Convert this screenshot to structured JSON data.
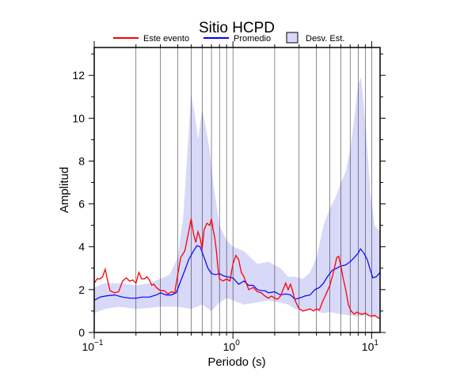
{
  "chart_data": {
    "type": "line",
    "title": "Sitio HCPD",
    "xlabel": "Periodo (s)",
    "ylabel": "Amplitud",
    "xscale": "log",
    "xlim": [
      0.1,
      11.5
    ],
    "ylim": [
      0,
      13.3
    ],
    "grid": "vertical log grid lines",
    "legend_position": "top",
    "x_tick_labels": [
      {
        "value": 0.1,
        "base": "10",
        "exp": "−1"
      },
      {
        "value": 1,
        "base": "10",
        "exp": "0"
      },
      {
        "value": 10,
        "base": "10",
        "exp": "1"
      }
    ],
    "y_ticks": [
      0,
      2,
      4,
      6,
      8,
      10,
      12
    ],
    "legend": [
      {
        "label": "Este evento",
        "color": "#ff0000",
        "kind": "line"
      },
      {
        "label": "Promedio",
        "color": "#0000ff",
        "kind": "line"
      },
      {
        "label": "Desv. Est.",
        "color": "#d8d8f8",
        "kind": "box"
      }
    ],
    "series": [
      {
        "name": "Este evento",
        "color": "#ff0000",
        "points": [
          [
            0.1,
            2.3
          ],
          [
            0.105,
            2.5
          ],
          [
            0.11,
            2.5
          ],
          [
            0.115,
            2.6
          ],
          [
            0.12,
            2.95
          ],
          [
            0.125,
            2.4
          ],
          [
            0.13,
            1.95
          ],
          [
            0.14,
            1.85
          ],
          [
            0.15,
            1.9
          ],
          [
            0.16,
            2.4
          ],
          [
            0.17,
            2.55
          ],
          [
            0.18,
            2.4
          ],
          [
            0.19,
            2.45
          ],
          [
            0.2,
            2.3
          ],
          [
            0.21,
            2.8
          ],
          [
            0.22,
            2.5
          ],
          [
            0.23,
            2.5
          ],
          [
            0.24,
            2.6
          ],
          [
            0.25,
            2.45
          ],
          [
            0.26,
            2.2
          ],
          [
            0.27,
            2.25
          ],
          [
            0.28,
            2.1
          ],
          [
            0.3,
            1.95
          ],
          [
            0.32,
            1.95
          ],
          [
            0.34,
            1.8
          ],
          [
            0.36,
            1.9
          ],
          [
            0.38,
            1.85
          ],
          [
            0.4,
            2.7
          ],
          [
            0.42,
            3.5
          ],
          [
            0.45,
            3.8
          ],
          [
            0.48,
            4.7
          ],
          [
            0.5,
            5.3
          ],
          [
            0.52,
            4.6
          ],
          [
            0.54,
            4.2
          ],
          [
            0.56,
            4.7
          ],
          [
            0.58,
            4.4
          ],
          [
            0.6,
            3.9
          ],
          [
            0.62,
            4.8
          ],
          [
            0.65,
            5.1
          ],
          [
            0.68,
            5.0
          ],
          [
            0.7,
            5.3
          ],
          [
            0.72,
            4.8
          ],
          [
            0.74,
            4.4
          ],
          [
            0.76,
            3.8
          ],
          [
            0.78,
            3.0
          ],
          [
            0.8,
            2.5
          ],
          [
            0.85,
            2.4
          ],
          [
            0.9,
            2.5
          ],
          [
            0.95,
            2.4
          ],
          [
            1.0,
            3.2
          ],
          [
            1.05,
            3.6
          ],
          [
            1.1,
            3.4
          ],
          [
            1.15,
            2.8
          ],
          [
            1.2,
            2.6
          ],
          [
            1.3,
            2.0
          ],
          [
            1.4,
            2.1
          ],
          [
            1.5,
            1.9
          ],
          [
            1.6,
            1.85
          ],
          [
            1.7,
            1.7
          ],
          [
            1.8,
            1.6
          ],
          [
            1.9,
            1.7
          ],
          [
            2.0,
            1.6
          ],
          [
            2.1,
            1.55
          ],
          [
            2.2,
            1.7
          ],
          [
            2.4,
            2.3
          ],
          [
            2.5,
            2.0
          ],
          [
            2.6,
            2.25
          ],
          [
            2.7,
            1.9
          ],
          [
            2.8,
            1.5
          ],
          [
            3.0,
            1.1
          ],
          [
            3.2,
            1.0
          ],
          [
            3.4,
            1.05
          ],
          [
            3.6,
            1.1
          ],
          [
            3.8,
            1.0
          ],
          [
            4.0,
            1.1
          ],
          [
            4.2,
            1.05
          ],
          [
            4.4,
            1.4
          ],
          [
            4.7,
            1.8
          ],
          [
            5.0,
            2.2
          ],
          [
            5.3,
            2.8
          ],
          [
            5.6,
            3.5
          ],
          [
            5.8,
            3.55
          ],
          [
            6.0,
            3.1
          ],
          [
            6.2,
            2.6
          ],
          [
            6.5,
            2.0
          ],
          [
            6.8,
            1.3
          ],
          [
            7.1,
            1.0
          ],
          [
            7.5,
            0.85
          ],
          [
            7.8,
            0.95
          ],
          [
            8.1,
            0.9
          ],
          [
            8.5,
            0.85
          ],
          [
            9.0,
            0.9
          ],
          [
            9.5,
            0.8
          ],
          [
            10.0,
            0.75
          ],
          [
            10.5,
            0.8
          ],
          [
            11.0,
            0.7
          ],
          [
            11.5,
            0.65
          ]
        ]
      },
      {
        "name": "Promedio",
        "color": "#0000ff",
        "points": [
          [
            0.1,
            1.5
          ],
          [
            0.11,
            1.65
          ],
          [
            0.12,
            1.7
          ],
          [
            0.14,
            1.75
          ],
          [
            0.16,
            1.65
          ],
          [
            0.18,
            1.6
          ],
          [
            0.2,
            1.6
          ],
          [
            0.22,
            1.65
          ],
          [
            0.25,
            1.65
          ],
          [
            0.28,
            1.75
          ],
          [
            0.3,
            1.85
          ],
          [
            0.33,
            1.75
          ],
          [
            0.36,
            1.75
          ],
          [
            0.39,
            1.85
          ],
          [
            0.42,
            2.4
          ],
          [
            0.45,
            2.9
          ],
          [
            0.48,
            3.4
          ],
          [
            0.52,
            3.8
          ],
          [
            0.55,
            4.05
          ],
          [
            0.58,
            4.0
          ],
          [
            0.62,
            3.5
          ],
          [
            0.66,
            3.0
          ],
          [
            0.7,
            2.75
          ],
          [
            0.75,
            2.7
          ],
          [
            0.8,
            2.75
          ],
          [
            0.85,
            2.65
          ],
          [
            0.9,
            2.6
          ],
          [
            1.0,
            2.55
          ],
          [
            1.1,
            2.25
          ],
          [
            1.2,
            2.4
          ],
          [
            1.3,
            2.2
          ],
          [
            1.4,
            2.2
          ],
          [
            1.5,
            2.0
          ],
          [
            1.6,
            1.95
          ],
          [
            1.7,
            1.95
          ],
          [
            1.8,
            1.85
          ],
          [
            2.0,
            1.9
          ],
          [
            2.2,
            1.75
          ],
          [
            2.4,
            1.8
          ],
          [
            2.6,
            1.75
          ],
          [
            2.8,
            1.55
          ],
          [
            3.0,
            1.6
          ],
          [
            3.3,
            1.7
          ],
          [
            3.6,
            1.75
          ],
          [
            3.9,
            2.0
          ],
          [
            4.2,
            2.1
          ],
          [
            4.5,
            2.3
          ],
          [
            4.8,
            2.6
          ],
          [
            5.2,
            2.9
          ],
          [
            5.6,
            3.0
          ],
          [
            6.0,
            3.1
          ],
          [
            6.5,
            3.15
          ],
          [
            7.0,
            3.3
          ],
          [
            7.5,
            3.5
          ],
          [
            8.0,
            3.7
          ],
          [
            8.3,
            3.9
          ],
          [
            8.8,
            3.7
          ],
          [
            9.3,
            3.4
          ],
          [
            9.8,
            2.9
          ],
          [
            10.2,
            2.55
          ],
          [
            10.8,
            2.6
          ],
          [
            11.5,
            2.8
          ]
        ]
      }
    ],
    "std_band": {
      "name": "Desv. Est.",
      "color": "#d8d8f8",
      "upper": [
        [
          0.1,
          2.1
        ],
        [
          0.12,
          2.3
        ],
        [
          0.15,
          2.3
        ],
        [
          0.2,
          2.2
        ],
        [
          0.25,
          2.3
        ],
        [
          0.3,
          2.5
        ],
        [
          0.35,
          2.7
        ],
        [
          0.4,
          3.5
        ],
        [
          0.44,
          5.5
        ],
        [
          0.47,
          8.5
        ],
        [
          0.5,
          11.1
        ],
        [
          0.53,
          10.2
        ],
        [
          0.56,
          9.0
        ],
        [
          0.6,
          10.4
        ],
        [
          0.64,
          9.5
        ],
        [
          0.68,
          8.5
        ],
        [
          0.72,
          7.0
        ],
        [
          0.8,
          5.0
        ],
        [
          0.9,
          4.3
        ],
        [
          1.0,
          4.0
        ],
        [
          1.2,
          3.8
        ],
        [
          1.5,
          3.2
        ],
        [
          1.8,
          3.3
        ],
        [
          2.2,
          3.0
        ],
        [
          2.5,
          2.6
        ],
        [
          2.8,
          2.6
        ],
        [
          3.2,
          2.5
        ],
        [
          3.6,
          2.8
        ],
        [
          4.0,
          3.5
        ],
        [
          4.5,
          5.0
        ],
        [
          5.0,
          5.8
        ],
        [
          5.5,
          6.3
        ],
        [
          6.0,
          7.0
        ],
        [
          6.5,
          7.5
        ],
        [
          7.0,
          8.5
        ],
        [
          7.5,
          10.0
        ],
        [
          8.0,
          11.6
        ],
        [
          8.4,
          11.9
        ],
        [
          8.8,
          10.5
        ],
        [
          9.2,
          9.0
        ],
        [
          9.8,
          6.5
        ],
        [
          10.5,
          5.0
        ],
        [
          11.5,
          4.7
        ]
      ],
      "lower": [
        [
          0.1,
          0.9
        ],
        [
          0.12,
          1.1
        ],
        [
          0.15,
          1.2
        ],
        [
          0.2,
          1.1
        ],
        [
          0.25,
          1.15
        ],
        [
          0.3,
          1.2
        ],
        [
          0.35,
          1.2
        ],
        [
          0.4,
          1.2
        ],
        [
          0.5,
          1.1
        ],
        [
          0.6,
          1.3
        ],
        [
          0.7,
          1.0
        ],
        [
          0.8,
          1.4
        ],
        [
          0.9,
          1.6
        ],
        [
          1.0,
          1.5
        ],
        [
          1.2,
          1.3
        ],
        [
          1.5,
          1.4
        ],
        [
          1.8,
          1.5
        ],
        [
          2.2,
          1.4
        ],
        [
          2.5,
          1.3
        ],
        [
          2.8,
          1.1
        ],
        [
          3.2,
          1.0
        ],
        [
          3.6,
          1.05
        ],
        [
          4.0,
          1.0
        ],
        [
          4.5,
          0.9
        ],
        [
          5.0,
          0.95
        ],
        [
          5.5,
          0.9
        ],
        [
          6.0,
          0.85
        ],
        [
          7.0,
          0.8
        ],
        [
          8.0,
          0.75
        ],
        [
          9.0,
          0.8
        ],
        [
          10.0,
          0.75
        ],
        [
          11.5,
          0.7
        ]
      ]
    }
  }
}
